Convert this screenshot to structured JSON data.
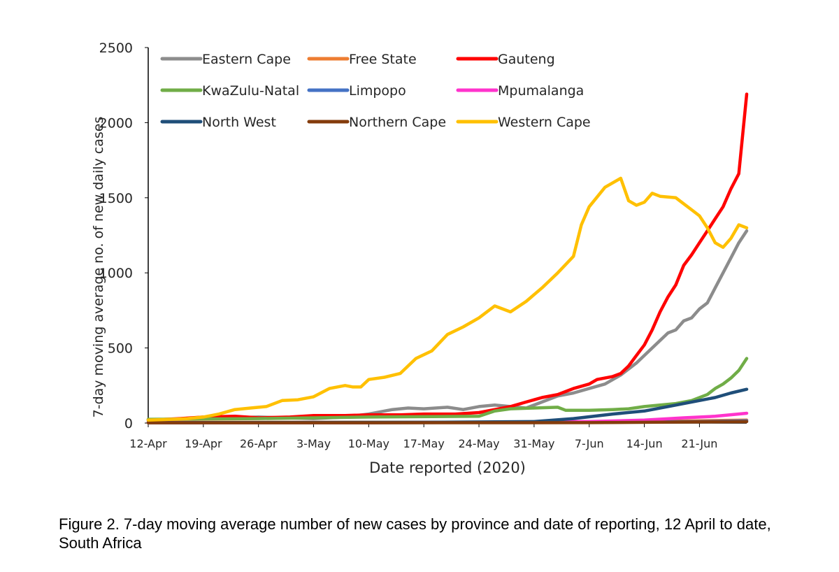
{
  "caption": "Figure 2. 7-day moving average number of new cases by province and date of reporting, 12 April to date, South Africa",
  "chart_data": {
    "type": "line",
    "title": "",
    "xlabel": "Date reported (2020)",
    "ylabel": "7-day moving average no. of new daily cases",
    "ylim": [
      0,
      2500
    ],
    "yticks": [
      0,
      500,
      1000,
      1500,
      2000,
      2500
    ],
    "xlim": [
      "2020-04-12",
      "2020-06-27"
    ],
    "x_tick_labels": [
      "12-Apr",
      "19-Apr",
      "26-Apr",
      "3-May",
      "10-May",
      "17-May",
      "24-May",
      "31-May",
      "7-Jun",
      "14-Jun",
      "21-Jun"
    ],
    "x_tick_dates": [
      "2020-04-12",
      "2020-04-19",
      "2020-04-26",
      "2020-05-03",
      "2020-05-10",
      "2020-05-17",
      "2020-05-24",
      "2020-05-31",
      "2020-06-07",
      "2020-06-14",
      "2020-06-21"
    ],
    "grid": false,
    "legend_position": "top-left",
    "series": [
      {
        "name": "Eastern Cape",
        "color": "#8c8c8c",
        "points": [
          [
            "2020-04-12",
            20
          ],
          [
            "2020-04-19",
            30
          ],
          [
            "2020-04-26",
            40
          ],
          [
            "2020-05-03",
            30
          ],
          [
            "2020-05-07",
            40
          ],
          [
            "2020-05-10",
            60
          ],
          [
            "2020-05-13",
            90
          ],
          [
            "2020-05-15",
            100
          ],
          [
            "2020-05-17",
            95
          ],
          [
            "2020-05-20",
            105
          ],
          [
            "2020-05-22",
            90
          ],
          [
            "2020-05-24",
            110
          ],
          [
            "2020-05-26",
            120
          ],
          [
            "2020-05-28",
            110
          ],
          [
            "2020-05-30",
            100
          ],
          [
            "2020-06-01",
            140
          ],
          [
            "2020-06-03",
            180
          ],
          [
            "2020-06-05",
            200
          ],
          [
            "2020-06-07",
            230
          ],
          [
            "2020-06-09",
            260
          ],
          [
            "2020-06-11",
            320
          ],
          [
            "2020-06-13",
            400
          ],
          [
            "2020-06-15",
            500
          ],
          [
            "2020-06-17",
            600
          ],
          [
            "2020-06-18",
            620
          ],
          [
            "2020-06-19",
            680
          ],
          [
            "2020-06-20",
            700
          ],
          [
            "2020-06-21",
            760
          ],
          [
            "2020-06-22",
            800
          ],
          [
            "2020-06-23",
            900
          ],
          [
            "2020-06-24",
            1000
          ],
          [
            "2020-06-25",
            1100
          ],
          [
            "2020-06-26",
            1200
          ],
          [
            "2020-06-27",
            1280
          ]
        ]
      },
      {
        "name": "Free State",
        "color": "#ed7d31",
        "points": [
          [
            "2020-04-12",
            5
          ],
          [
            "2020-04-26",
            5
          ],
          [
            "2020-05-10",
            5
          ],
          [
            "2020-05-24",
            5
          ],
          [
            "2020-06-07",
            8
          ],
          [
            "2020-06-14",
            10
          ],
          [
            "2020-06-21",
            15
          ],
          [
            "2020-06-27",
            20
          ]
        ]
      },
      {
        "name": "Gauteng",
        "color": "#ff0000",
        "points": [
          [
            "2020-04-12",
            20
          ],
          [
            "2020-04-16",
            30
          ],
          [
            "2020-04-19",
            40
          ],
          [
            "2020-04-23",
            45
          ],
          [
            "2020-04-26",
            35
          ],
          [
            "2020-04-30",
            40
          ],
          [
            "2020-05-03",
            50
          ],
          [
            "2020-05-07",
            50
          ],
          [
            "2020-05-10",
            55
          ],
          [
            "2020-05-14",
            55
          ],
          [
            "2020-05-17",
            60
          ],
          [
            "2020-05-21",
            60
          ],
          [
            "2020-05-24",
            70
          ],
          [
            "2020-05-26",
            90
          ],
          [
            "2020-05-28",
            110
          ],
          [
            "2020-05-30",
            140
          ],
          [
            "2020-06-01",
            170
          ],
          [
            "2020-06-03",
            190
          ],
          [
            "2020-06-05",
            230
          ],
          [
            "2020-06-07",
            260
          ],
          [
            "2020-06-08",
            290
          ],
          [
            "2020-06-10",
            310
          ],
          [
            "2020-06-11",
            330
          ],
          [
            "2020-06-12",
            380
          ],
          [
            "2020-06-13",
            450
          ],
          [
            "2020-06-14",
            520
          ],
          [
            "2020-06-15",
            620
          ],
          [
            "2020-06-16",
            740
          ],
          [
            "2020-06-17",
            840
          ],
          [
            "2020-06-18",
            920
          ],
          [
            "2020-06-19",
            1050
          ],
          [
            "2020-06-20",
            1120
          ],
          [
            "2020-06-21",
            1200
          ],
          [
            "2020-06-22",
            1280
          ],
          [
            "2020-06-23",
            1360
          ],
          [
            "2020-06-24",
            1440
          ],
          [
            "2020-06-25",
            1560
          ],
          [
            "2020-06-26",
            1660
          ],
          [
            "2020-06-27",
            2190
          ]
        ]
      },
      {
        "name": "KwaZulu-Natal",
        "color": "#70ad47",
        "points": [
          [
            "2020-04-12",
            25
          ],
          [
            "2020-04-26",
            30
          ],
          [
            "2020-05-10",
            40
          ],
          [
            "2020-05-24",
            45
          ],
          [
            "2020-05-26",
            80
          ],
          [
            "2020-05-28",
            95
          ],
          [
            "2020-05-31",
            100
          ],
          [
            "2020-06-03",
            105
          ],
          [
            "2020-06-04",
            85
          ],
          [
            "2020-06-07",
            85
          ],
          [
            "2020-06-10",
            90
          ],
          [
            "2020-06-12",
            95
          ],
          [
            "2020-06-14",
            110
          ],
          [
            "2020-06-16",
            120
          ],
          [
            "2020-06-18",
            130
          ],
          [
            "2020-06-20",
            150
          ],
          [
            "2020-06-22",
            190
          ],
          [
            "2020-06-23",
            230
          ],
          [
            "2020-06-24",
            260
          ],
          [
            "2020-06-25",
            300
          ],
          [
            "2020-06-26",
            350
          ],
          [
            "2020-06-27",
            430
          ]
        ]
      },
      {
        "name": "Limpopo",
        "color": "#4472c4",
        "points": [
          [
            "2020-04-12",
            3
          ],
          [
            "2020-05-10",
            3
          ],
          [
            "2020-06-07",
            5
          ],
          [
            "2020-06-21",
            10
          ],
          [
            "2020-06-27",
            15
          ]
        ]
      },
      {
        "name": "Mpumalanga",
        "color": "#ff33cc",
        "points": [
          [
            "2020-04-12",
            3
          ],
          [
            "2020-05-10",
            3
          ],
          [
            "2020-05-24",
            5
          ],
          [
            "2020-06-07",
            10
          ],
          [
            "2020-06-14",
            20
          ],
          [
            "2020-06-19",
            35
          ],
          [
            "2020-06-23",
            45
          ],
          [
            "2020-06-27",
            65
          ]
        ]
      },
      {
        "name": "North West",
        "color": "#1f4e79",
        "points": [
          [
            "2020-04-12",
            3
          ],
          [
            "2020-05-17",
            5
          ],
          [
            "2020-05-31",
            10
          ],
          [
            "2020-06-05",
            30
          ],
          [
            "2020-06-10",
            60
          ],
          [
            "2020-06-14",
            80
          ],
          [
            "2020-06-17",
            110
          ],
          [
            "2020-06-20",
            140
          ],
          [
            "2020-06-23",
            170
          ],
          [
            "2020-06-25",
            200
          ],
          [
            "2020-06-27",
            225
          ]
        ]
      },
      {
        "name": "Northern Cape",
        "color": "#843c0c",
        "points": [
          [
            "2020-04-12",
            2
          ],
          [
            "2020-05-10",
            2
          ],
          [
            "2020-06-07",
            3
          ],
          [
            "2020-06-27",
            10
          ]
        ]
      },
      {
        "name": "Western Cape",
        "color": "#ffc000",
        "points": [
          [
            "2020-04-12",
            20
          ],
          [
            "2020-04-15",
            25
          ],
          [
            "2020-04-17",
            30
          ],
          [
            "2020-04-19",
            40
          ],
          [
            "2020-04-21",
            60
          ],
          [
            "2020-04-23",
            90
          ],
          [
            "2020-04-25",
            100
          ],
          [
            "2020-04-27",
            110
          ],
          [
            "2020-04-29",
            150
          ],
          [
            "2020-05-01",
            155
          ],
          [
            "2020-05-03",
            175
          ],
          [
            "2020-05-05",
            230
          ],
          [
            "2020-05-07",
            250
          ],
          [
            "2020-05-08",
            240
          ],
          [
            "2020-05-09",
            240
          ],
          [
            "2020-05-10",
            290
          ],
          [
            "2020-05-12",
            305
          ],
          [
            "2020-05-14",
            330
          ],
          [
            "2020-05-16",
            430
          ],
          [
            "2020-05-18",
            480
          ],
          [
            "2020-05-20",
            590
          ],
          [
            "2020-05-22",
            640
          ],
          [
            "2020-05-24",
            700
          ],
          [
            "2020-05-26",
            780
          ],
          [
            "2020-05-28",
            740
          ],
          [
            "2020-05-30",
            810
          ],
          [
            "2020-06-01",
            900
          ],
          [
            "2020-06-03",
            1000
          ],
          [
            "2020-06-05",
            1110
          ],
          [
            "2020-06-06",
            1320
          ],
          [
            "2020-06-07",
            1440
          ],
          [
            "2020-06-09",
            1570
          ],
          [
            "2020-06-11",
            1630
          ],
          [
            "2020-06-12",
            1480
          ],
          [
            "2020-06-13",
            1450
          ],
          [
            "2020-06-14",
            1470
          ],
          [
            "2020-06-15",
            1530
          ],
          [
            "2020-06-16",
            1510
          ],
          [
            "2020-06-18",
            1500
          ],
          [
            "2020-06-19",
            1460
          ],
          [
            "2020-06-20",
            1420
          ],
          [
            "2020-06-21",
            1380
          ],
          [
            "2020-06-22",
            1300
          ],
          [
            "2020-06-23",
            1200
          ],
          [
            "2020-06-24",
            1170
          ],
          [
            "2020-06-25",
            1230
          ],
          [
            "2020-06-26",
            1320
          ],
          [
            "2020-06-27",
            1300
          ]
        ]
      }
    ]
  }
}
